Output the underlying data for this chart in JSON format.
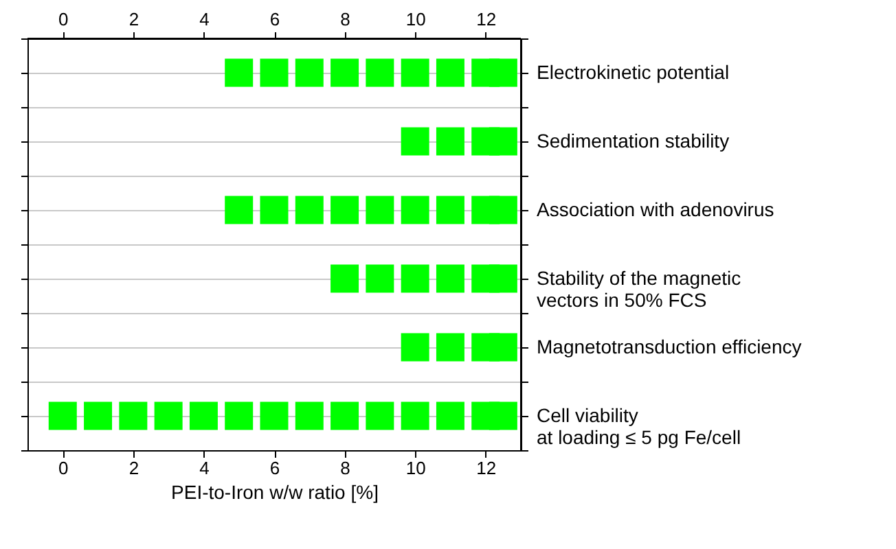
{
  "chart_data": {
    "type": "scatter",
    "orientation": "horizontal",
    "xlabel": "PEI-to-Iron w/w ratio [%]",
    "categories": [
      "Electrokinetic potential",
      "Sedimentation stability",
      "Association with adenovirus",
      "Stability of the magnetic\nvectors in 50% FCS",
      "Magnetotransduction efficiency",
      "Cell viability\nat loading ≤ 5 pg Fe/cell"
    ],
    "series": [
      {
        "color": "#00ff00",
        "values": [
          null,
          null,
          null,
          null,
          null,
          0
        ]
      },
      {
        "color": "#00ff00",
        "values": [
          null,
          null,
          null,
          null,
          null,
          1
        ]
      },
      {
        "color": "#00ff00",
        "values": [
          null,
          null,
          null,
          null,
          null,
          2
        ]
      },
      {
        "color": "#00ff00",
        "values": [
          null,
          null,
          null,
          null,
          null,
          3
        ]
      },
      {
        "color": "#00ff00",
        "values": [
          null,
          null,
          null,
          null,
          null,
          4
        ]
      },
      {
        "color": "#00ff00",
        "values": [
          5,
          null,
          5,
          null,
          null,
          5
        ]
      },
      {
        "color": "#00ff00",
        "values": [
          6,
          null,
          6,
          null,
          null,
          6
        ]
      },
      {
        "color": "#00ff00",
        "values": [
          7,
          null,
          7,
          null,
          null,
          7
        ]
      },
      {
        "color": "#00ff00",
        "values": [
          8,
          null,
          8,
          8,
          null,
          8
        ]
      },
      {
        "color": "#00ff00",
        "values": [
          9,
          null,
          9,
          9,
          null,
          9
        ]
      },
      {
        "color": "#00ff00",
        "values": [
          10,
          10,
          10,
          10,
          10,
          10
        ]
      },
      {
        "color": "#00ff00",
        "values": [
          11,
          11,
          11,
          11,
          11,
          11
        ]
      },
      {
        "color": "#00ff00",
        "values": [
          12,
          12,
          12,
          12,
          12,
          12
        ]
      },
      {
        "color": "#00ff00",
        "values": [
          12.5,
          12.5,
          12.5,
          12.5,
          12.5,
          12.5
        ]
      }
    ],
    "xlim": [
      -1,
      13
    ],
    "xticks": [
      0,
      2,
      4,
      6,
      8,
      10,
      12
    ],
    "x2lim": [
      -1,
      13
    ],
    "x2ticks": [
      0,
      2,
      4,
      6,
      8,
      10,
      12
    ],
    "marker": "square",
    "grid": "y"
  }
}
